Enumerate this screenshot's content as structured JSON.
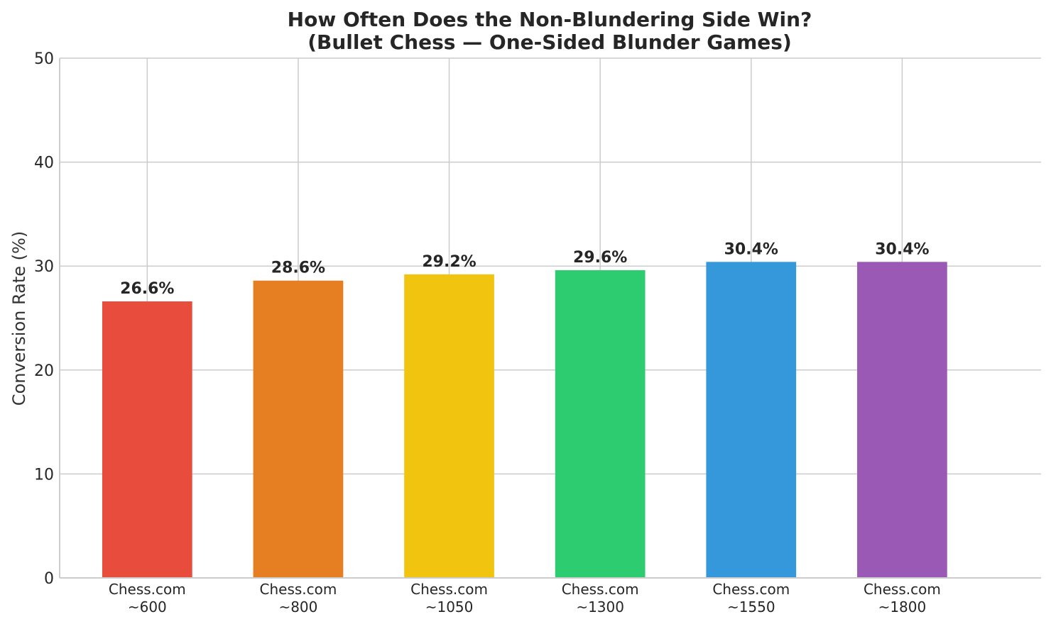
{
  "chart_data": {
    "type": "bar",
    "title_lines": [
      "How Often Does the Non-Blundering Side Win?",
      "(Bullet Chess — One-Sided Blunder Games)"
    ],
    "xlabel": "",
    "ylabel": "Conversion Rate (%)",
    "ylim": [
      0,
      50
    ],
    "yticks": [
      0,
      10,
      20,
      30,
      40,
      50
    ],
    "grid": true,
    "categories": [
      [
        "Chess.com",
        "~600"
      ],
      [
        "Chess.com",
        "~800"
      ],
      [
        "Chess.com",
        "~1050"
      ],
      [
        "Chess.com",
        "~1300"
      ],
      [
        "Chess.com",
        "~1550"
      ],
      [
        "Chess.com",
        "~1800"
      ]
    ],
    "values": [
      26.6,
      28.6,
      29.2,
      29.6,
      30.4,
      30.4
    ],
    "value_labels": [
      "26.6%",
      "28.6%",
      "29.2%",
      "29.6%",
      "30.4%",
      "30.4%"
    ],
    "colors": [
      "#e74c3c",
      "#e67e22",
      "#f1c40f",
      "#2ecc71",
      "#3498db",
      "#9b59b6"
    ]
  }
}
